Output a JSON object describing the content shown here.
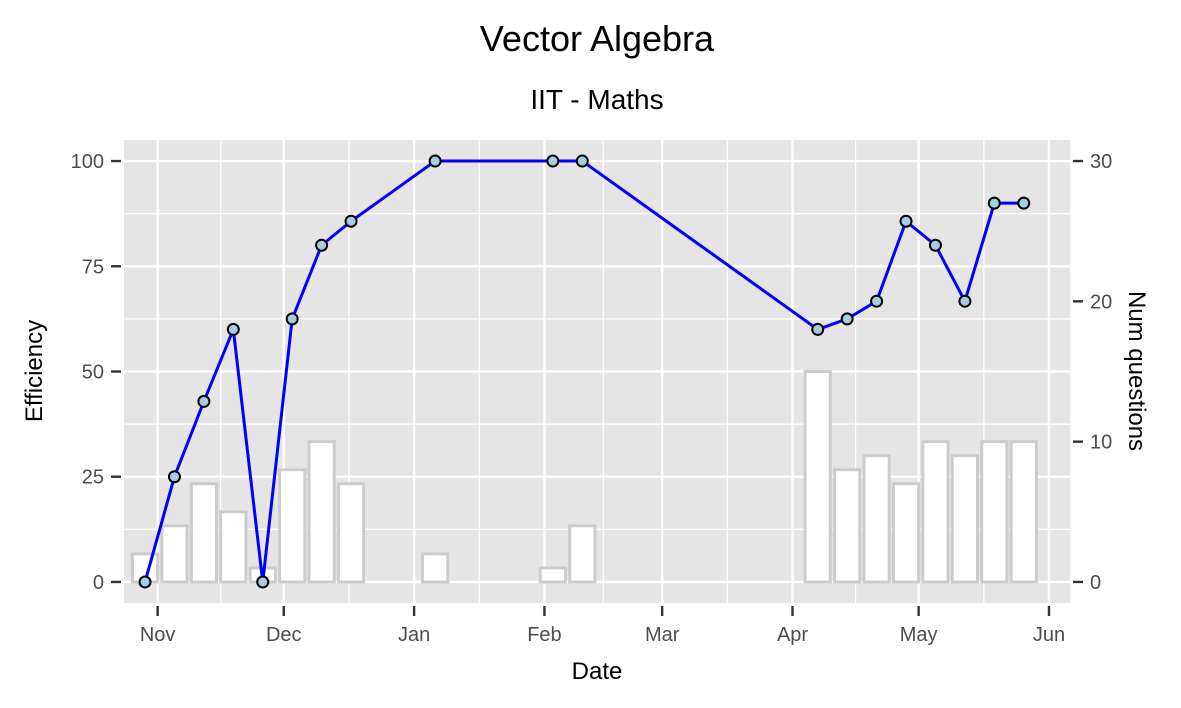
{
  "chart_data": {
    "type": "bar+line",
    "title": "Vector Algebra",
    "subtitle": "IIT - Maths",
    "xlabel": "Date",
    "ylabel": "Efficiency",
    "ylabel_right": "Num questions",
    "xlim": [
      "2018-10-24",
      "2019-06-06"
    ],
    "ylim": [
      -5,
      105
    ],
    "ylim_right": [
      -1.5,
      31.5
    ],
    "x_ticks": [
      {
        "date": "2018-11-01",
        "label": "Nov"
      },
      {
        "date": "2018-12-01",
        "label": "Dec"
      },
      {
        "date": "2019-01-01",
        "label": "Jan"
      },
      {
        "date": "2019-02-01",
        "label": "Feb"
      },
      {
        "date": "2019-03-01",
        "label": "Mar"
      },
      {
        "date": "2019-04-01",
        "label": "Apr"
      },
      {
        "date": "2019-05-01",
        "label": "May"
      },
      {
        "date": "2019-06-01",
        "label": "Jun"
      }
    ],
    "y_ticks": [
      0,
      25,
      50,
      75,
      100
    ],
    "y_ticks_right": [
      0,
      10,
      20,
      30
    ],
    "grid": true,
    "line_color": "#0000ff",
    "point_fill": "#a6cee3",
    "bar_fill": "#ffffff",
    "bar_stroke": "#cccccc",
    "panel_background": "#e5e5e5",
    "bar_width_days": 6,
    "series": [
      {
        "type": "line",
        "axis": "left",
        "points": [
          {
            "date": "2018-10-29",
            "value": 0
          },
          {
            "date": "2018-11-05",
            "value": 25
          },
          {
            "date": "2018-11-12",
            "value": 42.9
          },
          {
            "date": "2018-11-19",
            "value": 60
          },
          {
            "date": "2018-11-26",
            "value": 0
          },
          {
            "date": "2018-12-03",
            "value": 62.5
          },
          {
            "date": "2018-12-10",
            "value": 80
          },
          {
            "date": "2018-12-17",
            "value": 85.7
          },
          {
            "date": "2019-01-06",
            "value": 100
          },
          {
            "date": "2019-02-03",
            "value": 100
          },
          {
            "date": "2019-02-10",
            "value": 100
          },
          {
            "date": "2019-04-07",
            "value": 60
          },
          {
            "date": "2019-04-14",
            "value": 62.5
          },
          {
            "date": "2019-04-21",
            "value": 66.7
          },
          {
            "date": "2019-04-28",
            "value": 85.7
          },
          {
            "date": "2019-05-05",
            "value": 80
          },
          {
            "date": "2019-05-12",
            "value": 66.7
          },
          {
            "date": "2019-05-19",
            "value": 90
          },
          {
            "date": "2019-05-26",
            "value": 90
          }
        ]
      },
      {
        "type": "bar",
        "axis": "right",
        "points": [
          {
            "date": "2018-10-29",
            "value": 2
          },
          {
            "date": "2018-11-05",
            "value": 4
          },
          {
            "date": "2018-11-12",
            "value": 7
          },
          {
            "date": "2018-11-19",
            "value": 5
          },
          {
            "date": "2018-11-26",
            "value": 1
          },
          {
            "date": "2018-12-03",
            "value": 8
          },
          {
            "date": "2018-12-10",
            "value": 10
          },
          {
            "date": "2018-12-17",
            "value": 7
          },
          {
            "date": "2019-01-06",
            "value": 2
          },
          {
            "date": "2019-02-03",
            "value": 1
          },
          {
            "date": "2019-02-10",
            "value": 4
          },
          {
            "date": "2019-04-07",
            "value": 15
          },
          {
            "date": "2019-04-14",
            "value": 8
          },
          {
            "date": "2019-04-21",
            "value": 9
          },
          {
            "date": "2019-04-28",
            "value": 7
          },
          {
            "date": "2019-05-05",
            "value": 10
          },
          {
            "date": "2019-05-12",
            "value": 9
          },
          {
            "date": "2019-05-19",
            "value": 10
          },
          {
            "date": "2019-05-26",
            "value": 10
          }
        ]
      }
    ]
  }
}
